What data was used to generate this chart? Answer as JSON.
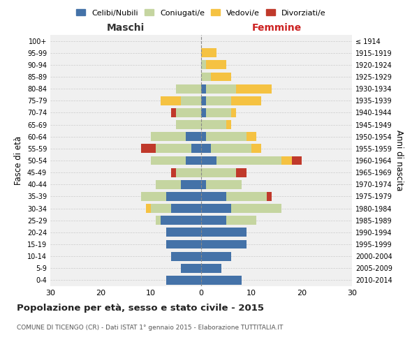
{
  "age_groups": [
    "100+",
    "95-99",
    "90-94",
    "85-89",
    "80-84",
    "75-79",
    "70-74",
    "65-69",
    "60-64",
    "55-59",
    "50-54",
    "45-49",
    "40-44",
    "35-39",
    "30-34",
    "25-29",
    "20-24",
    "15-19",
    "10-14",
    "5-9",
    "0-4"
  ],
  "birth_years": [
    "≤ 1914",
    "1915-1919",
    "1920-1924",
    "1925-1929",
    "1930-1934",
    "1935-1939",
    "1940-1944",
    "1945-1949",
    "1950-1954",
    "1955-1959",
    "1960-1964",
    "1965-1969",
    "1970-1974",
    "1975-1979",
    "1980-1984",
    "1985-1989",
    "1990-1994",
    "1995-1999",
    "2000-2004",
    "2005-2009",
    "2010-2014"
  ],
  "colors": {
    "celibe": "#4472a8",
    "coniugato": "#c5d5a0",
    "vedovo": "#f5c242",
    "divorziato": "#c0392b"
  },
  "maschi": {
    "celibe": [
      0,
      0,
      0,
      0,
      0,
      0,
      0,
      0,
      3,
      2,
      3,
      0,
      4,
      7,
      6,
      8,
      7,
      7,
      6,
      4,
      7
    ],
    "coniugato": [
      0,
      0,
      0,
      0,
      5,
      4,
      5,
      5,
      7,
      7,
      7,
      5,
      5,
      5,
      4,
      1,
      0,
      0,
      0,
      0,
      0
    ],
    "vedovo": [
      0,
      0,
      0,
      0,
      0,
      4,
      0,
      0,
      0,
      0,
      0,
      0,
      0,
      0,
      1,
      0,
      0,
      0,
      0,
      0,
      0
    ],
    "divorziato": [
      0,
      0,
      0,
      0,
      0,
      0,
      1,
      0,
      0,
      3,
      0,
      1,
      0,
      0,
      0,
      0,
      0,
      0,
      0,
      0,
      0
    ]
  },
  "femmine": {
    "celibe": [
      0,
      0,
      0,
      0,
      1,
      1,
      1,
      0,
      1,
      2,
      3,
      0,
      1,
      5,
      6,
      5,
      9,
      9,
      6,
      4,
      8
    ],
    "coniugato": [
      0,
      0,
      1,
      2,
      6,
      5,
      5,
      5,
      8,
      8,
      13,
      7,
      7,
      8,
      10,
      6,
      0,
      0,
      0,
      0,
      0
    ],
    "vedovo": [
      0,
      3,
      4,
      4,
      7,
      6,
      1,
      1,
      2,
      2,
      2,
      0,
      0,
      0,
      0,
      0,
      0,
      0,
      0,
      0,
      0
    ],
    "divorziato": [
      0,
      0,
      0,
      0,
      0,
      0,
      0,
      0,
      0,
      0,
      2,
      2,
      0,
      1,
      0,
      0,
      0,
      0,
      0,
      0,
      0
    ]
  },
  "title": "Popolazione per età, sesso e stato civile - 2015",
  "subtitle": "COMUNE DI TICENGO (CR) - Dati ISTAT 1° gennaio 2015 - Elaborazione TUTTITALIA.IT",
  "xlabel_left": "Maschi",
  "xlabel_right": "Femmine",
  "ylabel_left": "Fasce di età",
  "ylabel_right": "Anni di nascita",
  "xlim": 30,
  "legend_labels": [
    "Celibi/Nubili",
    "Coniugati/e",
    "Vedovi/e",
    "Divorziati/e"
  ],
  "background_color": "#f0f0f0"
}
